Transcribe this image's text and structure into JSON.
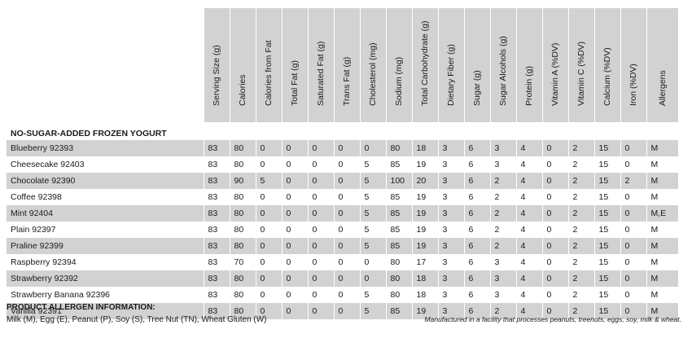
{
  "headers": [
    "Serving Size (g)",
    "Calories",
    "Calories from Fat",
    "Total Fat (g)",
    "Saturated Fat (g)",
    "Trans Fat (g)",
    "Cholesterol (mg)",
    "Sodium (mg)",
    "Total Carbohydrate (g)",
    "Dietary Fiber (g)",
    "Sugar (g)",
    "Sugar Alcohols (g)",
    "Protein (g)",
    "Vitamin A (%DV)",
    "Vitamin C (%DV)",
    "Calcium (%DV)",
    "Iron (%DV)",
    "Allergens"
  ],
  "section_title": "NO-SUGAR-ADDED FROZEN YOGURT",
  "rows": [
    {
      "name": "Blueberry  92393",
      "values": [
        "83",
        "80",
        "0",
        "0",
        "0",
        "0",
        "0",
        "80",
        "18",
        "3",
        "6",
        "3",
        "4",
        "0",
        "2",
        "15",
        "0",
        "M"
      ]
    },
    {
      "name": "Cheesecake  92403",
      "values": [
        "83",
        "80",
        "0",
        "0",
        "0",
        "0",
        "5",
        "85",
        "19",
        "3",
        "6",
        "3",
        "4",
        "0",
        "2",
        "15",
        "0",
        "M"
      ]
    },
    {
      "name": "Chocolate  92390",
      "values": [
        "83",
        "90",
        "5",
        "0",
        "0",
        "0",
        "5",
        "100",
        "20",
        "3",
        "6",
        "2",
        "4",
        "0",
        "2",
        "15",
        "2",
        "M"
      ]
    },
    {
      "name": "Coffee  92398",
      "values": [
        "83",
        "80",
        "0",
        "0",
        "0",
        "0",
        "5",
        "85",
        "19",
        "3",
        "6",
        "2",
        "4",
        "0",
        "2",
        "15",
        "0",
        "M"
      ]
    },
    {
      "name": "Mint  92404",
      "values": [
        "83",
        "80",
        "0",
        "0",
        "0",
        "0",
        "5",
        "85",
        "19",
        "3",
        "6",
        "2",
        "4",
        "0",
        "2",
        "15",
        "0",
        "M,E"
      ]
    },
    {
      "name": "Plain  92397",
      "values": [
        "83",
        "80",
        "0",
        "0",
        "0",
        "0",
        "5",
        "85",
        "19",
        "3",
        "6",
        "2",
        "4",
        "0",
        "2",
        "15",
        "0",
        "M"
      ]
    },
    {
      "name": "Praline  92399",
      "values": [
        "83",
        "80",
        "0",
        "0",
        "0",
        "0",
        "5",
        "85",
        "19",
        "3",
        "6",
        "2",
        "4",
        "0",
        "2",
        "15",
        "0",
        "M"
      ]
    },
    {
      "name": "Raspberry  92394",
      "values": [
        "83",
        "70",
        "0",
        "0",
        "0",
        "0",
        "0",
        "80",
        "17",
        "3",
        "6",
        "3",
        "4",
        "0",
        "2",
        "15",
        "0",
        "M"
      ]
    },
    {
      "name": "Strawberry  92392",
      "values": [
        "83",
        "80",
        "0",
        "0",
        "0",
        "0",
        "0",
        "80",
        "18",
        "3",
        "6",
        "3",
        "4",
        "0",
        "2",
        "15",
        "0",
        "M"
      ]
    },
    {
      "name": "Strawberry Banana  92396",
      "values": [
        "83",
        "80",
        "0",
        "0",
        "0",
        "0",
        "5",
        "80",
        "18",
        "3",
        "6",
        "3",
        "4",
        "0",
        "2",
        "15",
        "0",
        "M"
      ]
    },
    {
      "name": "Vanilla  92391",
      "values": [
        "83",
        "80",
        "0",
        "0",
        "0",
        "0",
        "5",
        "85",
        "19",
        "3",
        "6",
        "2",
        "4",
        "0",
        "2",
        "15",
        "0",
        "M"
      ]
    }
  ],
  "footer": {
    "title": "PRODUCT ALLERGEN INFORMATION:",
    "legend": "Milk (M), Egg (E), Peanut (P), Soy (S), Tree Nut (TN), Wheat Gluten (W)",
    "note": "Manufactured in a facility that processes peanuts, treenuts, eggs, soy, milk & wheat."
  },
  "colors": {
    "band": "#d2d2d2"
  }
}
